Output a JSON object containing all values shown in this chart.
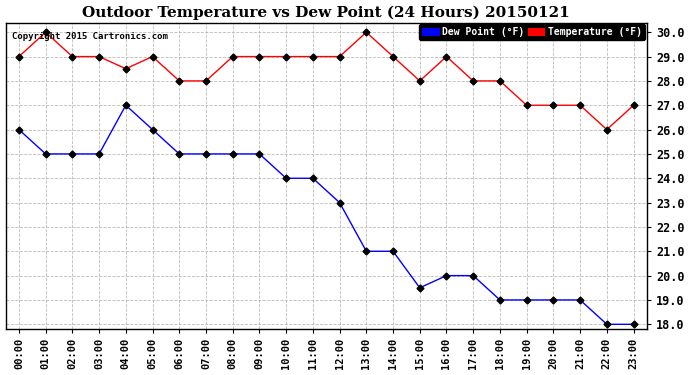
{
  "title": "Outdoor Temperature vs Dew Point (24 Hours) 20150121",
  "copyright": "Copyright 2015 Cartronics.com",
  "hours": [
    "00:00",
    "01:00",
    "02:00",
    "03:00",
    "04:00",
    "05:00",
    "06:00",
    "07:00",
    "08:00",
    "09:00",
    "10:00",
    "11:00",
    "12:00",
    "13:00",
    "14:00",
    "15:00",
    "16:00",
    "17:00",
    "18:00",
    "19:00",
    "20:00",
    "21:00",
    "22:00",
    "23:00"
  ],
  "temperature": [
    29.0,
    30.0,
    29.0,
    29.0,
    28.5,
    29.0,
    28.0,
    28.0,
    29.0,
    29.0,
    29.0,
    29.0,
    29.0,
    30.0,
    29.0,
    28.0,
    29.0,
    28.0,
    28.0,
    27.0,
    27.0,
    27.0,
    26.0,
    27.0
  ],
  "dew_point": [
    26.0,
    25.0,
    25.0,
    25.0,
    27.0,
    26.0,
    25.0,
    25.0,
    25.0,
    25.0,
    24.0,
    24.0,
    23.0,
    21.0,
    21.0,
    19.5,
    20.0,
    20.0,
    19.0,
    19.0,
    19.0,
    19.0,
    18.0,
    18.0
  ],
  "ylim_min": 18.0,
  "ylim_max": 30.0,
  "ytick_step": 1.0,
  "temp_color": "#ff0000",
  "dew_color": "#0000ff",
  "background_color": "#ffffff",
  "grid_color": "#aaaaaa",
  "legend_dew_bg": "#0000ff",
  "legend_temp_bg": "#ff0000",
  "legend_text_color": "#ffffff",
  "marker_color": "#000000",
  "title_fontsize": 11,
  "tick_fontsize": 7.5,
  "ytick_fontsize": 8.5
}
